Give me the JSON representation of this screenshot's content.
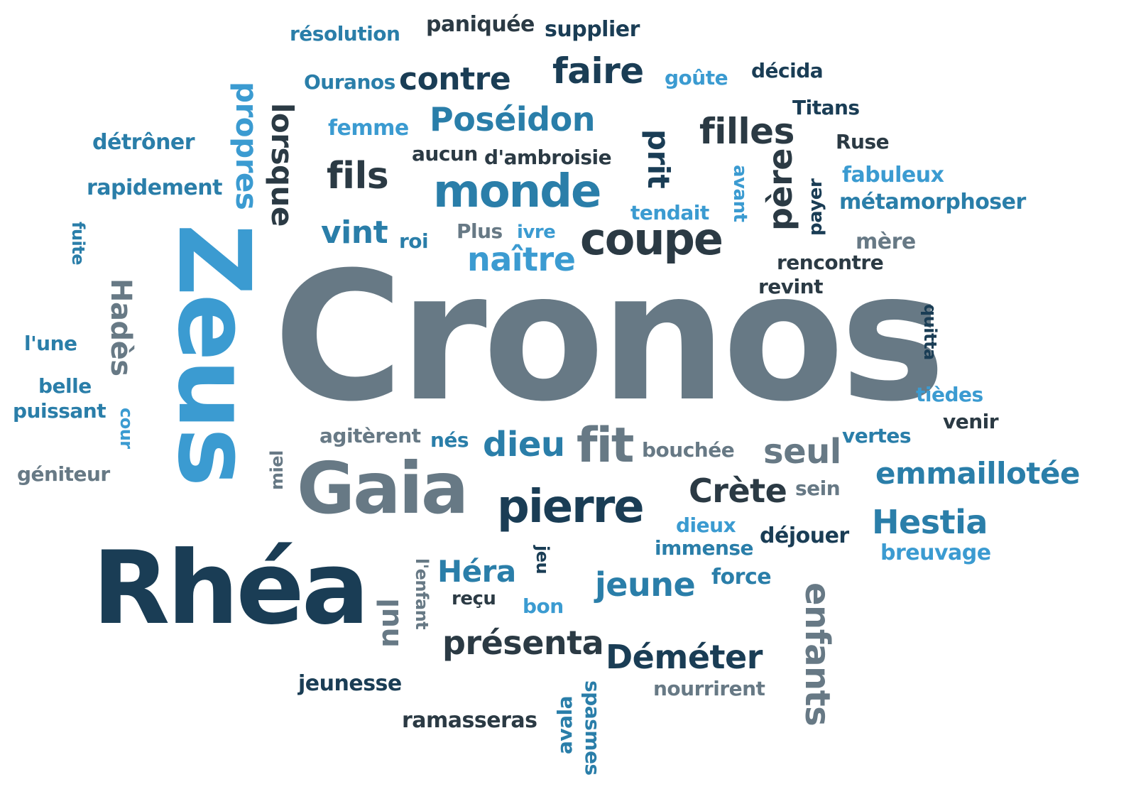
{
  "palette": {
    "navy": "#1a3d55",
    "dark": "#2b3a44",
    "teal": "#2a7ea9",
    "blue": "#3b9bd1",
    "gray": "#677985"
  },
  "words": {
    "cronos": "Cronos",
    "zeus": "Zeus",
    "rhea": "Rhéa",
    "gaia": "Gaia",
    "pierre": "pierre",
    "monde": "monde",
    "coupe": "coupe",
    "faire": "faire",
    "contre": "contre",
    "poseidon": "Poséidon",
    "filles": "filles",
    "fils": "fils",
    "fit": "fit",
    "dieu": "dieu",
    "seul": "seul",
    "crete": "Crète",
    "emmaillotee": "emmaillotée",
    "hestia": "Hestia",
    "demeter": "Déméter",
    "presenta": "présenta",
    "jeune": "jeune",
    "hera": "Héra",
    "enfants": "enfants",
    "naitre": "naître",
    "vint": "vint",
    "lorsque": "lorsque",
    "propres": "propres",
    "prit": "prit",
    "pere": "père",
    "hades": "Hadès",
    "nul": "nul",
    "resolution": "résolution",
    "paniquee": "paniquée",
    "supplier": "supplier",
    "ouranos": "Ouranos",
    "goute": "goûte",
    "decida": "décida",
    "titans": "Titans",
    "femme": "femme",
    "detroner": "détrôner",
    "aucun": "aucun",
    "dambroisie": "d'ambroisie",
    "ruse": "Ruse",
    "fabuleux": "fabuleux",
    "metamorphoser": "métamorphoser",
    "rapidement": "rapidement",
    "tendait": "tendait",
    "avant": "avant",
    "payer": "payer",
    "fuite": "fuite",
    "plus": "Plus",
    "ivre": "ivre",
    "roi": "roi",
    "mere": "mère",
    "rencontre": "rencontre",
    "revint": "revint",
    "lune": "l'une",
    "belle": "belle",
    "puissant": "puissant",
    "cour": "cour",
    "quitta": "quitta",
    "tiedes": "tièdes",
    "venir": "venir",
    "agiterent": "agitèrent",
    "nes": "nés",
    "bouchee": "bouchée",
    "vertes": "vertes",
    "geniteur": "géniteur",
    "miel": "miel",
    "sein": "sein",
    "dieux": "dieux",
    "immense": "immense",
    "dejouer": "déjouer",
    "breuvage": "breuvage",
    "lenfant": "l'enfant",
    "jeu": "jeu",
    "recu": "reçu",
    "bon": "bon",
    "force": "force",
    "jeunesse": "jeunesse",
    "nourrirent": "nourrirent",
    "ramasseras": "ramasseras",
    "avala": "avala",
    "spasmes": "spasmes"
  }
}
